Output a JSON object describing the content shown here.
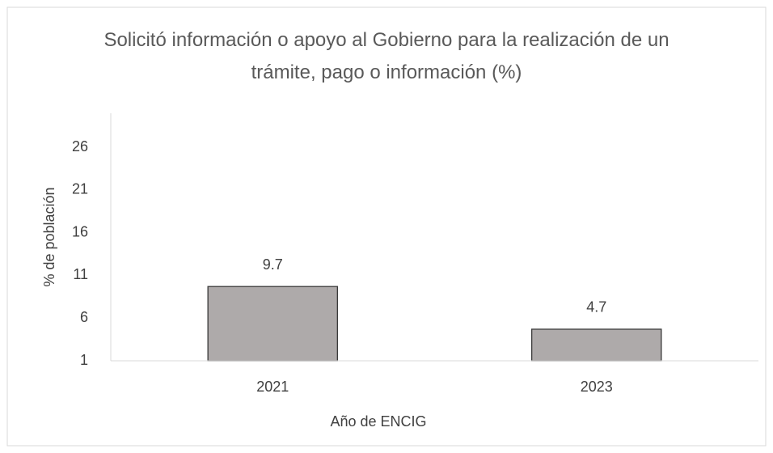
{
  "chart_data": {
    "type": "bar",
    "title": "Solicitó información o apoyo al Gobierno para la realización de un trámite, pago o información (%)",
    "x_label": "Año de ENCIG",
    "y_label": "% de población",
    "categories": [
      "2021",
      "2023"
    ],
    "values": [
      9.7,
      4.7
    ],
    "color": "#aeaaaa",
    "ylim": [
      1,
      30
    ],
    "yticks": [
      1,
      6,
      11,
      16,
      21,
      26
    ],
    "grid": false
  }
}
